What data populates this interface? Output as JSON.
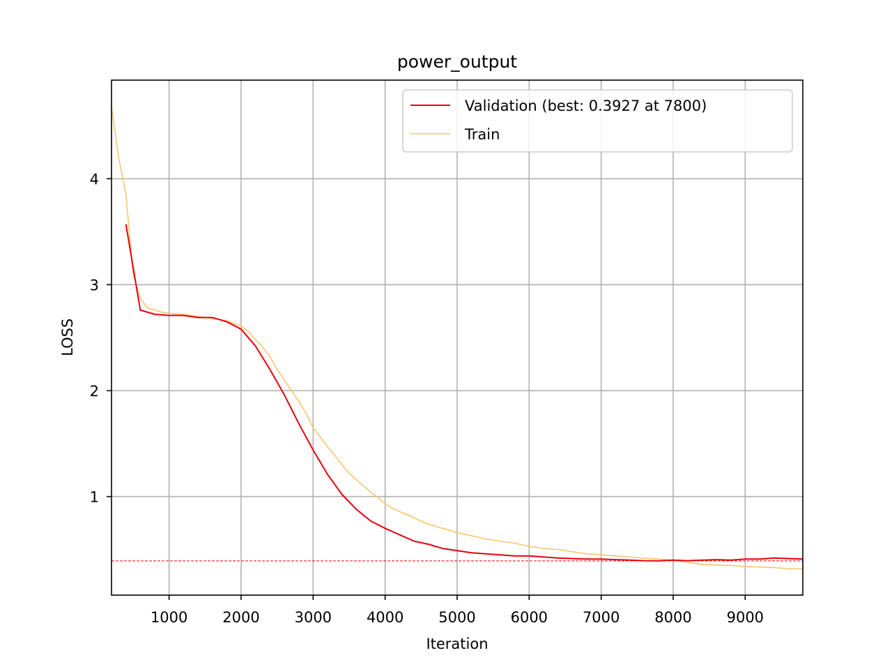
{
  "chart_data": {
    "type": "line",
    "title": "power_output",
    "xlabel": "Iteration",
    "ylabel": "LOSS",
    "xlim": [
      200,
      9800
    ],
    "ylim": [
      0.07,
      4.93
    ],
    "xticks": [
      1000,
      2000,
      3000,
      4000,
      5000,
      6000,
      7000,
      8000,
      9000
    ],
    "yticks": [
      1,
      2,
      3,
      4
    ],
    "grid": true,
    "legend_position": "top-right",
    "best_line_value": 0.3927,
    "series": [
      {
        "name": "Validation (best: 0.3927 at 7800)",
        "color": "#e8000b",
        "x": [
          400,
          600,
          800,
          1000,
          1200,
          1400,
          1600,
          1800,
          2000,
          2200,
          2400,
          2600,
          2800,
          3000,
          3200,
          3400,
          3600,
          3800,
          4000,
          4200,
          4400,
          4600,
          4800,
          5000,
          5200,
          5400,
          5600,
          5800,
          6000,
          6200,
          6400,
          6600,
          6800,
          7000,
          7200,
          7400,
          7600,
          7800,
          8000,
          8200,
          8400,
          8600,
          8800,
          9000,
          9200,
          9400,
          9600,
          9800
        ],
        "y": [
          3.57,
          2.76,
          2.72,
          2.71,
          2.71,
          2.69,
          2.69,
          2.65,
          2.58,
          2.42,
          2.2,
          1.96,
          1.69,
          1.44,
          1.21,
          1.02,
          0.88,
          0.77,
          0.7,
          0.64,
          0.58,
          0.55,
          0.51,
          0.49,
          0.47,
          0.46,
          0.45,
          0.44,
          0.44,
          0.43,
          0.42,
          0.415,
          0.41,
          0.41,
          0.405,
          0.4,
          0.395,
          0.3927,
          0.4,
          0.395,
          0.4,
          0.405,
          0.4,
          0.41,
          0.41,
          0.42,
          0.415,
          0.41
        ]
      },
      {
        "name": "Train",
        "color": "#fdc46a",
        "x": [
          200,
          300,
          400,
          500,
          600,
          700,
          800,
          900,
          1000,
          1200,
          1400,
          1600,
          1800,
          2000,
          2100,
          2200,
          2300,
          2400,
          2500,
          2600,
          2700,
          2800,
          2900,
          3000,
          3100,
          3200,
          3300,
          3400,
          3500,
          3600,
          3700,
          3800,
          3900,
          4000,
          4100,
          4200,
          4300,
          4400,
          4500,
          4600,
          4700,
          4800,
          4900,
          5000,
          5200,
          5400,
          5600,
          5800,
          6000,
          6200,
          6400,
          6600,
          6800,
          7000,
          7200,
          7400,
          7600,
          7800,
          8000,
          8200,
          8400,
          8600,
          8800,
          9000,
          9200,
          9400,
          9600,
          9800
        ],
        "y": [
          4.68,
          4.2,
          3.85,
          3.1,
          2.87,
          2.78,
          2.76,
          2.74,
          2.73,
          2.72,
          2.7,
          2.68,
          2.66,
          2.61,
          2.56,
          2.48,
          2.41,
          2.32,
          2.2,
          2.1,
          2.0,
          1.9,
          1.79,
          1.65,
          1.56,
          1.47,
          1.39,
          1.3,
          1.22,
          1.16,
          1.1,
          1.04,
          0.99,
          0.93,
          0.89,
          0.86,
          0.83,
          0.8,
          0.77,
          0.74,
          0.72,
          0.7,
          0.68,
          0.66,
          0.63,
          0.6,
          0.58,
          0.56,
          0.53,
          0.51,
          0.5,
          0.48,
          0.46,
          0.45,
          0.44,
          0.43,
          0.42,
          0.41,
          0.4,
          0.38,
          0.36,
          0.355,
          0.35,
          0.34,
          0.335,
          0.33,
          0.32,
          0.32
        ]
      }
    ]
  }
}
